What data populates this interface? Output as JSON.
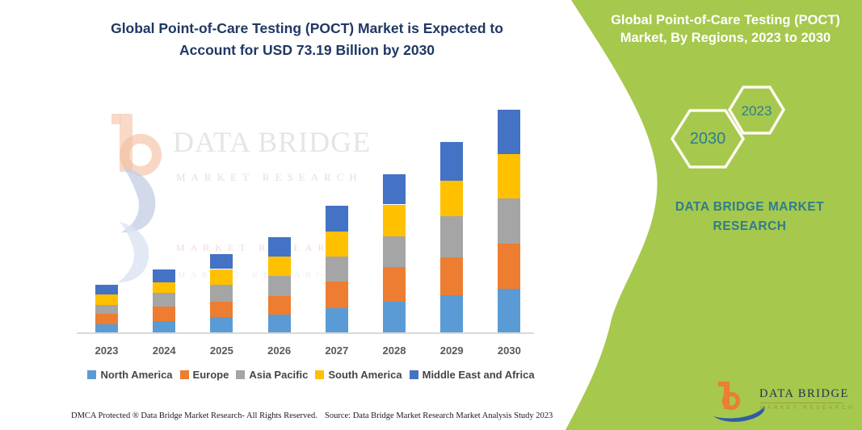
{
  "main": {
    "title_line1": "Global Point-of-Care Testing (POCT) Market is Expected to",
    "title_line2": "Account for USD 73.19 Billion by 2030",
    "footer_dmca": "DMCA Protected ® Data Bridge Market Research-  All Rights Reserved.",
    "footer_source": "Source: Data Bridge Market Research  Market Analysis Study 2023"
  },
  "watermark": {
    "brand": "DATA BRIDGE",
    "sub": "MARKET RESEARCH",
    "sub2": "MARKET RESEARCH",
    "sub3": "MARKET RESEARCH"
  },
  "panel": {
    "bg_color": "#A6C84D",
    "accent_teal": "#2E7D8C",
    "title_line1": "Global Point-of-Care Testing (POCT)",
    "title_line2": "Market, By Regions, 2023 to 2030",
    "hex_large_year": "2030",
    "hex_small_year": "2023",
    "brand_line1": "DATA BRIDGE MARKET",
    "brand_line2": "RESEARCH"
  },
  "logo": {
    "name": "DATA BRIDGE",
    "tagline": "MARKET RESEARCH",
    "orange": "#E8802F",
    "blue": "#2F5BA8",
    "navy": "#1F2F55"
  },
  "chart_data": {
    "type": "bar",
    "stacked": true,
    "title": "Global Point-of-Care Testing (POCT) Market is Expected to Account for USD 73.19 Billion by 2030",
    "unit": "USD billion (estimated from bar heights)",
    "categories": [
      "2023",
      "2024",
      "2025",
      "2026",
      "2027",
      "2028",
      "2029",
      "2030"
    ],
    "series": [
      {
        "name": "North America",
        "color": "#5B9BD5",
        "values": [
          2.6,
          3.7,
          5.0,
          5.8,
          7.9,
          10.1,
          12.1,
          14.3
        ]
      },
      {
        "name": "Europe",
        "color": "#ED7D31",
        "values": [
          3.4,
          4.7,
          5.0,
          6.2,
          8.8,
          11.3,
          12.5,
          14.8
        ]
      },
      {
        "name": "Asia Pacific",
        "color": "#A5A5A5",
        "values": [
          3.1,
          4.6,
          5.7,
          6.6,
          8.1,
          10.1,
          13.5,
          14.9
        ]
      },
      {
        "name": "South America",
        "color": "#FFC000",
        "values": [
          3.3,
          3.4,
          5.1,
          6.4,
          8.4,
          10.5,
          11.7,
          14.5
        ]
      },
      {
        "name": "Middle East and Africa",
        "color": "#4472C4",
        "values": [
          3.3,
          4.2,
          5.0,
          6.2,
          8.4,
          10.0,
          12.8,
          14.7
        ]
      }
    ],
    "totals": [
      15.7,
      20.6,
      25.8,
      31.2,
      41.6,
      52.0,
      62.6,
      73.19
    ],
    "xlabel": "",
    "ylabel": "",
    "y_axis_visible": false,
    "grid": false,
    "legend_position": "bottom"
  }
}
